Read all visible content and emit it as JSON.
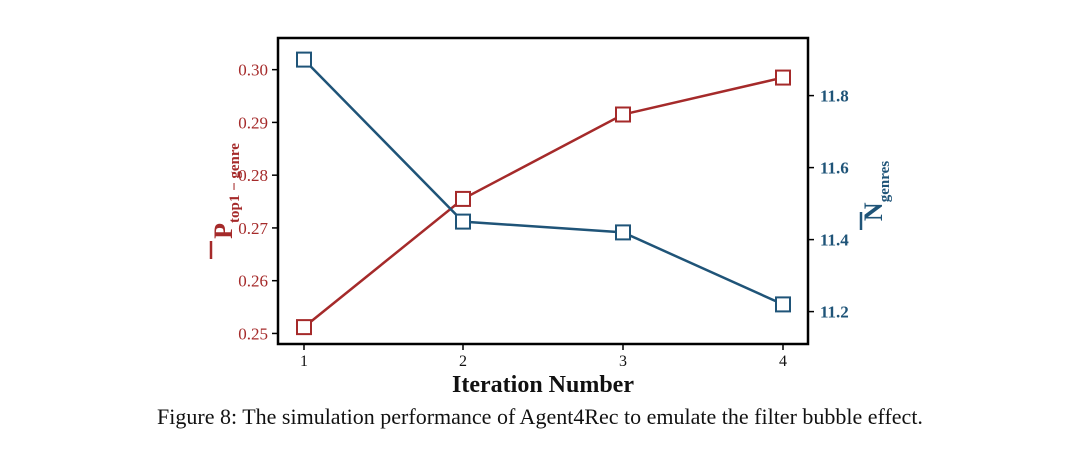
{
  "chart_data": {
    "type": "line",
    "xlabel": "Iteration Number",
    "x": [
      1,
      2,
      3,
      4
    ],
    "x_ticks": [
      "1",
      "2",
      "3",
      "4"
    ],
    "y_left": {
      "label_main": "P",
      "label_sub": "top1 − genre",
      "ticks": [
        "0.25",
        "0.26",
        "0.27",
        "0.28",
        "0.29",
        "0.30"
      ],
      "range": [
        0.248,
        0.306
      ],
      "color": "#a52a2a"
    },
    "y_right": {
      "label_main": "N",
      "label_sub": "genres",
      "ticks": [
        "11.2",
        "11.4",
        "11.6",
        "11.8"
      ],
      "range": [
        11.11,
        11.96
      ],
      "color": "#1f5478"
    },
    "series": [
      {
        "axis": "left",
        "values": [
          0.2512,
          0.2755,
          0.2915,
          0.2985
        ],
        "color": "#a52a2a"
      },
      {
        "axis": "right",
        "values": [
          11.9,
          11.45,
          11.42,
          11.22
        ],
        "color": "#1f5478"
      }
    ],
    "marker": "square-open",
    "grid": false
  },
  "caption": "Figure 8: The simulation performance of Agent4Rec to emulate the filter bubble effect."
}
